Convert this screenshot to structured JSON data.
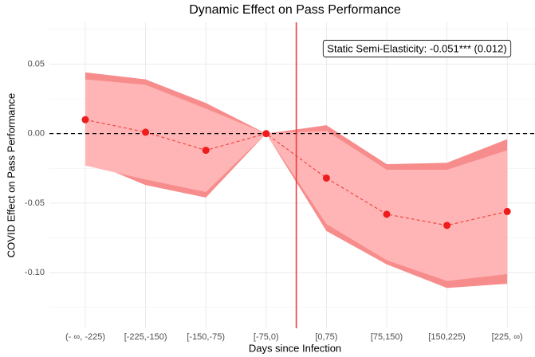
{
  "chart_data": {
    "type": "ribbon-line",
    "title": "Dynamic Effect on Pass Performance",
    "x_label": "Days since Infection",
    "y_label": "COVID Effect on Pass Performance",
    "annotation": "Static Semi-Elasticity: -0.051*** (0.012)",
    "categories": [
      "(- ∞, -225)",
      "[-225,-150)",
      "[-150,-75)",
      "[-75,0)",
      "[0,75)",
      "[75,150)",
      "[150,225)",
      "[225, ∞)"
    ],
    "values": [
      0.01,
      0.001,
      -0.012,
      0.0,
      -0.032,
      -0.058,
      -0.066,
      -0.056
    ],
    "ci_outer": {
      "lower": [
        -0.019,
        -0.037,
        -0.046,
        0.0,
        -0.07,
        -0.094,
        -0.111,
        -0.108
      ],
      "upper": [
        0.044,
        0.039,
        0.022,
        0.0,
        0.006,
        -0.022,
        -0.021,
        -0.004
      ]
    },
    "ci_inner": {
      "lower": [
        -0.023,
        -0.033,
        -0.042,
        0.0,
        -0.065,
        -0.091,
        -0.106,
        -0.101
      ],
      "upper": [
        0.039,
        0.035,
        0.018,
        0.0,
        0.002,
        -0.026,
        -0.026,
        -0.012
      ]
    },
    "hline": 0,
    "ylim": [
      -0.14,
      0.08
    ],
    "yticks": [
      0.05,
      {
        "value": 0,
        "label": "0.00"
      },
      -0.05,
      {
        "value": -0.1,
        "label": "-0.10"
      }
    ],
    "minor_yticks": [
      0.075,
      0.025,
      -0.025,
      -0.075,
      -0.125
    ],
    "grid": true,
    "color": "#ee1c1c",
    "line_color": "#f04848",
    "ci_outer_color": "#f78c8c",
    "ci_inner_color": "#ffb5b5",
    "vline_color": "#ee3b3b"
  }
}
